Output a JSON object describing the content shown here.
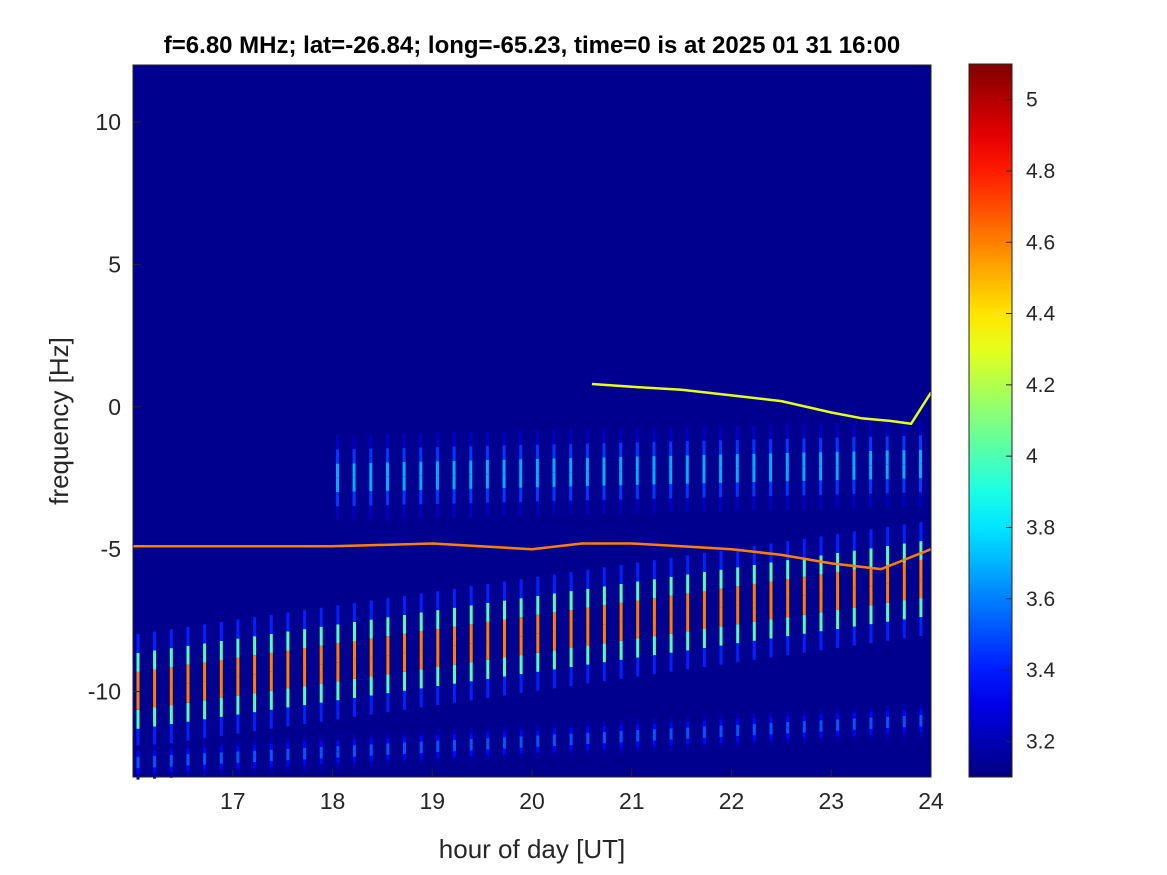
{
  "chart_data": {
    "type": "heatmap",
    "title": "f=6.80 MHz;  lat=-26.84; long=-65.23, time=0 is at 2025 01 31 16:00",
    "xlabel": "hour of day [UT]",
    "ylabel": "frequency [Hz]",
    "xlim": [
      16,
      24
    ],
    "ylim": [
      -13,
      12
    ],
    "xticks": [
      17,
      18,
      19,
      20,
      21,
      22,
      23,
      24
    ],
    "yticks": [
      -10,
      -5,
      0,
      5,
      10
    ],
    "colormap": "jet",
    "clim": [
      3.1,
      5.1
    ],
    "colorbar_ticks": [
      3.2,
      3.4,
      3.6,
      3.8,
      4,
      4.2,
      4.4,
      4.6,
      4.8,
      5
    ],
    "background_value": 3.12,
    "features": {
      "pulse_period_hours": 0.167,
      "pulse_train_bands_hz": [
        {
          "start_hour": 16.0,
          "end_hour": 24.0,
          "center_start": -10.0,
          "center_end": -6.0,
          "half_width": 2.0,
          "peak_value": 4.9
        },
        {
          "start_hour": 16.0,
          "end_hour": 24.0,
          "center_start": -12.5,
          "center_end": -11.0,
          "half_width": 0.6,
          "peak_value": 3.6
        },
        {
          "start_hour": 18.0,
          "end_hour": 24.0,
          "center_start": -2.5,
          "center_end": -2.0,
          "half_width": 1.5,
          "peak_value": 3.8
        }
      ],
      "traces": [
        {
          "name": "",
          "hours": [
            16.0,
            17.0,
            18.0,
            19.0,
            20.0,
            20.5,
            21.0,
            21.5,
            22.0,
            22.5,
            23.0,
            23.5,
            24.0
          ],
          "freq_hz": [
            -4.9,
            -4.9,
            -4.9,
            -4.8,
            -5.0,
            -4.8,
            -4.8,
            -4.9,
            -5.0,
            -5.2,
            -5.5,
            -5.7,
            -5.0
          ],
          "value": 4.6
        },
        {
          "name": "",
          "hours": [
            20.6,
            21.0,
            21.5,
            22.0,
            22.5,
            23.0,
            23.3,
            23.6,
            23.8,
            24.0
          ],
          "freq_hz": [
            0.8,
            0.7,
            0.6,
            0.4,
            0.2,
            -0.2,
            -0.4,
            -0.5,
            -0.6,
            0.5
          ],
          "value": 4.3
        }
      ]
    }
  }
}
